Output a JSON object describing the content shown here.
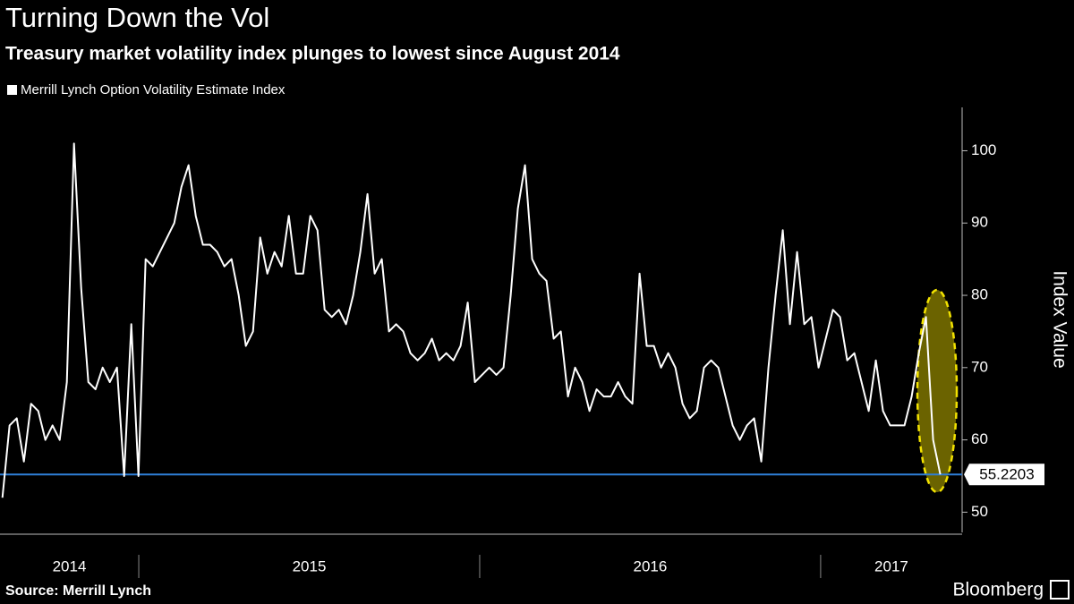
{
  "chart_data": {
    "type": "line",
    "title": "Turning Down the Vol",
    "subtitle": "Treasury market volatility index plunges to lowest since August 2014",
    "y_label": "Index Value",
    "source": "Source: Merrill Lynch",
    "brand": "Bloomberg",
    "reference": 55.2203,
    "reference_color": "#2f7fd8",
    "xlim": [
      2014.593,
      2017.415
    ],
    "xticks": [
      2014,
      2015,
      2016,
      2017
    ],
    "ylim": [
      47.2,
      106
    ],
    "yticks": [
      50,
      60,
      70,
      80,
      90,
      100
    ],
    "x": [
      2014.6,
      2014.621,
      2014.642,
      2014.663,
      2014.684,
      2014.705,
      2014.726,
      2014.747,
      2014.768,
      2014.789,
      2014.81,
      2014.831,
      2014.852,
      2014.873,
      2014.894,
      2014.915,
      2014.936,
      2014.957,
      2014.978,
      2014.999,
      2015.02,
      2015.041,
      2015.062,
      2015.083,
      2015.104,
      2015.125,
      2015.146,
      2015.167,
      2015.188,
      2015.209,
      2015.23,
      2015.251,
      2015.272,
      2015.293,
      2015.314,
      2015.335,
      2015.356,
      2015.377,
      2015.398,
      2015.419,
      2015.44,
      2015.461,
      2015.482,
      2015.503,
      2015.524,
      2015.545,
      2015.566,
      2015.587,
      2015.608,
      2015.629,
      2015.65,
      2015.671,
      2015.692,
      2015.713,
      2015.734,
      2015.755,
      2015.776,
      2015.797,
      2015.818,
      2015.839,
      2015.86,
      2015.881,
      2015.902,
      2015.923,
      2015.944,
      2015.965,
      2015.986,
      2016.007,
      2016.028,
      2016.049,
      2016.07,
      2016.091,
      2016.112,
      2016.133,
      2016.154,
      2016.175,
      2016.196,
      2016.217,
      2016.238,
      2016.259,
      2016.28,
      2016.301,
      2016.322,
      2016.343,
      2016.364,
      2016.385,
      2016.406,
      2016.427,
      2016.448,
      2016.469,
      2016.49,
      2016.511,
      2016.532,
      2016.553,
      2016.574,
      2016.595,
      2016.616,
      2016.637,
      2016.658,
      2016.679,
      2016.7,
      2016.721,
      2016.742,
      2016.763,
      2016.784,
      2016.805,
      2016.826,
      2016.847,
      2016.868,
      2016.889,
      2016.91,
      2016.931,
      2016.952,
      2016.973,
      2016.994,
      2017.015,
      2017.036,
      2017.057,
      2017.078,
      2017.099,
      2017.12,
      2017.141,
      2017.162,
      2017.183,
      2017.204,
      2017.225,
      2017.246,
      2017.267,
      2017.288,
      2017.309,
      2017.33,
      2017.351
    ],
    "series": [
      {
        "name": "Merrill Lynch Option Volatility Estimate Index",
        "color": "#ffffff",
        "values": [
          52,
          62,
          63,
          57,
          65,
          64,
          60,
          62,
          60,
          68,
          101,
          81,
          68,
          67,
          70,
          68,
          70,
          55,
          76,
          55,
          85,
          84,
          86,
          88,
          90,
          95,
          98,
          91,
          87,
          87,
          86,
          84,
          85,
          80,
          73,
          75,
          88,
          83,
          86,
          84,
          91,
          83,
          83,
          91,
          89,
          78,
          77,
          78,
          76,
          80,
          86,
          94,
          83,
          85,
          75,
          76,
          75,
          72,
          71,
          72,
          74,
          71,
          72,
          71,
          73,
          79,
          68,
          69,
          70,
          69,
          70,
          80,
          92,
          98,
          85,
          83,
          82,
          74,
          75,
          66,
          70,
          68,
          64,
          67,
          66,
          66,
          68,
          66,
          65,
          83,
          73,
          73,
          70,
          72,
          70,
          65,
          63,
          64,
          70,
          71,
          70,
          66,
          62,
          60,
          62,
          63,
          57,
          70,
          80,
          89,
          76,
          86,
          76,
          77,
          70,
          74,
          78,
          77,
          71,
          72,
          68,
          64,
          71,
          64,
          62,
          62,
          62,
          66,
          72,
          77,
          60,
          55.2203
        ]
      }
    ]
  }
}
